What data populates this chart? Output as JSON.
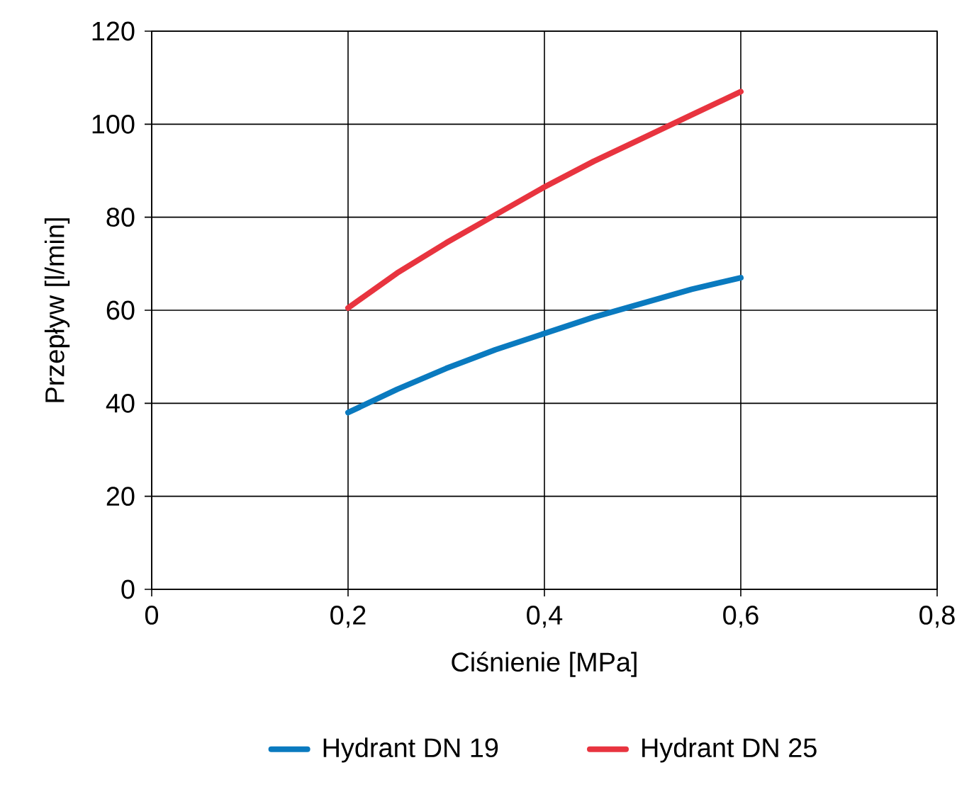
{
  "chart_data": {
    "type": "line",
    "xlabel": "Ciśnienie [MPa]",
    "ylabel": "Przepływ [l/min]",
    "xlim": [
      0,
      0.8
    ],
    "ylim": [
      0,
      120
    ],
    "xticks": [
      0,
      {
        "value": 0.2,
        "label": "0,2"
      },
      {
        "value": 0.4,
        "label": "0,4"
      },
      {
        "value": 0.6,
        "label": "0,6"
      },
      {
        "value": 0.8,
        "label": "0,8"
      }
    ],
    "yticks": [
      0,
      20,
      40,
      60,
      80,
      100,
      120
    ],
    "grid": true,
    "legend": "bottom",
    "marker": "none",
    "line_style": "solid",
    "series": [
      {
        "name": "Hydrant DN 19",
        "color": "#0a7abf",
        "x": [
          0.2,
          0.25,
          0.3,
          0.35,
          0.4,
          0.45,
          0.5,
          0.55,
          0.6
        ],
        "values": [
          38,
          43,
          47.5,
          51.5,
          55,
          58.5,
          61.5,
          64.5,
          67
        ]
      },
      {
        "name": "Hydrant DN 25",
        "color": "#e8343f",
        "x": [
          0.2,
          0.25,
          0.3,
          0.35,
          0.4,
          0.45,
          0.5,
          0.55,
          0.6
        ],
        "values": [
          60.5,
          68,
          74.5,
          80.5,
          86.5,
          92,
          97,
          102,
          107
        ]
      }
    ]
  }
}
